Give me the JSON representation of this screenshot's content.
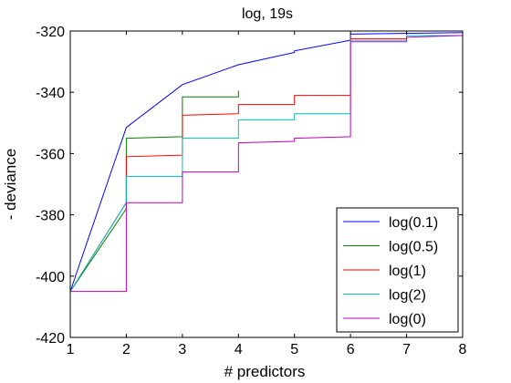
{
  "chart_data": {
    "type": "line",
    "title": "log, 19s",
    "xlabel": "# predictors",
    "ylabel": "- deviance",
    "xlim": [
      1,
      8
    ],
    "ylim": [
      -420,
      -320
    ],
    "xticks": [
      1,
      2,
      3,
      4,
      5,
      6,
      7,
      8
    ],
    "yticks": [
      -420,
      -400,
      -380,
      -360,
      -340,
      -320
    ],
    "xtick_labels": [
      "1",
      "2",
      "3",
      "4",
      "5",
      "6",
      "7",
      "8"
    ],
    "ytick_labels": [
      "-420",
      "-400",
      "-380",
      "-360",
      "-340",
      "-320"
    ],
    "grid": false,
    "legend_position": "bottom-right",
    "series": [
      {
        "name": "log(0.1)",
        "color": "#0000ff",
        "points": [
          [
            1,
            -405
          ],
          [
            2,
            -351.5
          ],
          [
            3,
            -337.5
          ],
          [
            4,
            -331
          ],
          [
            5,
            -327
          ],
          [
            5,
            -326.5
          ],
          [
            6,
            -323
          ],
          [
            6,
            -321
          ],
          [
            8,
            -320.5
          ]
        ]
      },
      {
        "name": "log(0.5)",
        "color": "#008000",
        "points": [
          [
            1,
            -405
          ],
          [
            2,
            -378
          ],
          [
            2,
            -355
          ],
          [
            3,
            -354.5
          ],
          [
            3,
            -341.5
          ],
          [
            4,
            -341.5
          ],
          [
            4,
            -339.5
          ]
        ]
      },
      {
        "name": "log(1)",
        "color": "#ff0000",
        "points": [
          [
            1,
            -405
          ],
          [
            2,
            -376
          ],
          [
            2,
            -361
          ],
          [
            3,
            -360.5
          ],
          [
            3,
            -347.5
          ],
          [
            4,
            -347
          ],
          [
            4,
            -344
          ],
          [
            5,
            -344
          ],
          [
            5,
            -341
          ],
          [
            6,
            -341
          ],
          [
            6,
            -322.5
          ],
          [
            7,
            -322.5
          ],
          [
            7,
            -321.5
          ],
          [
            8,
            -321.5
          ]
        ]
      },
      {
        "name": "log(2)",
        "color": "#00bfbf",
        "points": [
          [
            1,
            -405
          ],
          [
            2,
            -376
          ],
          [
            2,
            -367.5
          ],
          [
            3,
            -367.5
          ],
          [
            3,
            -355
          ],
          [
            4,
            -355
          ],
          [
            4,
            -349
          ],
          [
            5,
            -349
          ],
          [
            5,
            -347
          ],
          [
            6,
            -347
          ],
          [
            6,
            -323
          ],
          [
            7,
            -323
          ],
          [
            7,
            -321.5
          ],
          [
            8,
            -321.5
          ]
        ]
      },
      {
        "name": "log(0)",
        "color": "#bf00bf",
        "points": [
          [
            1,
            -405
          ],
          [
            2,
            -405
          ],
          [
            2,
            -376
          ],
          [
            3,
            -376
          ],
          [
            3,
            -366
          ],
          [
            4,
            -366
          ],
          [
            4,
            -356.5
          ],
          [
            5,
            -356
          ],
          [
            5,
            -355
          ],
          [
            6,
            -354.5
          ],
          [
            6,
            -323.5
          ],
          [
            7,
            -323.5
          ],
          [
            7,
            -322
          ],
          [
            8,
            -321.5
          ]
        ]
      }
    ]
  }
}
